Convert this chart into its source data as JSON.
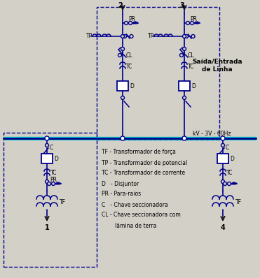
{
  "bg_color": "#d3d0c8",
  "line_color": "#00008B",
  "dark_line": "#111111",
  "cyan_color": "#00CCCC",
  "legend_items": [
    "TF - Transformador de força",
    "TP - Transformador de potencial",
    "TC - Transformador de corrente",
    "D   - Disjuntor",
    "PR - Para-raios",
    "C   - Chave seccionadora",
    "CL - Chave seccionadora com",
    "        lâmina de terra"
  ],
  "figsize": [
    3.71,
    3.98
  ],
  "dpi": 100
}
